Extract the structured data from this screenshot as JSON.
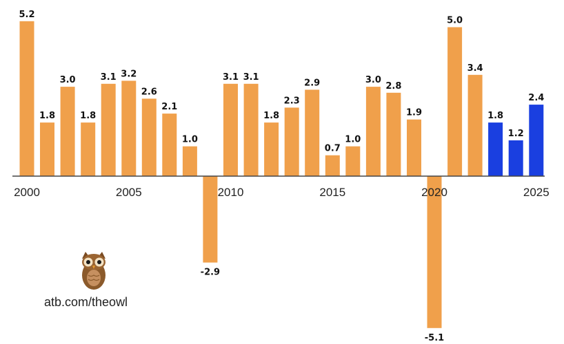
{
  "chart_data": {
    "type": "bar",
    "title": "",
    "xlabel": "",
    "ylabel": "",
    "x": [
      2000,
      2001,
      2002,
      2003,
      2004,
      2005,
      2006,
      2007,
      2008,
      2009,
      2010,
      2011,
      2012,
      2013,
      2014,
      2015,
      2016,
      2017,
      2018,
      2019,
      2020,
      2021,
      2022,
      2023,
      2024,
      2025
    ],
    "values": [
      5.2,
      1.8,
      3.0,
      1.8,
      3.1,
      3.2,
      2.6,
      2.1,
      1.0,
      -2.9,
      3.1,
      3.1,
      1.8,
      2.3,
      2.9,
      0.7,
      1.0,
      3.0,
      2.8,
      1.9,
      -5.1,
      5.0,
      3.4,
      1.8,
      1.2,
      2.4
    ],
    "value_labels": [
      "5.2",
      "1.8",
      "3.0",
      "1.8",
      "3.1",
      "3.2",
      "2.6",
      "2.1",
      "1.0",
      "-2.9",
      "3.1",
      "3.1",
      "1.8",
      "2.3",
      "2.9",
      "0.7",
      "1.0",
      "3.0",
      "2.8",
      "1.9",
      "-5.1",
      "5.0",
      "3.4",
      "1.8",
      "1.2",
      "2.4"
    ],
    "x_ticks": [
      "2000",
      "2005",
      "2010",
      "2015",
      "2020",
      "2025"
    ],
    "ylim": [
      -5.1,
      5.2
    ],
    "grid": false,
    "colors": {
      "actual": "#F0A04B",
      "forecast": "#1A3FE0",
      "forecast_from_index": 23
    }
  },
  "credit": {
    "text": "atb.com/theowl",
    "logo": "owl-icon"
  }
}
